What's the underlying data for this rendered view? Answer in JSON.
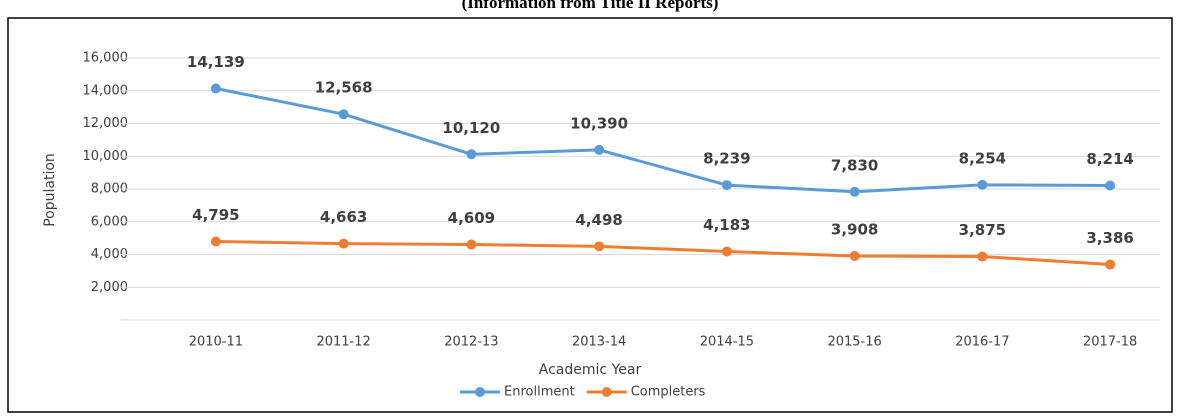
{
  "chart_data": {
    "type": "line",
    "title": "(Information from Title II Reports)",
    "x_label": "Academic Year",
    "y_label": "Population",
    "categories": [
      "2010-11",
      "2011-12",
      "2012-13",
      "2013-14",
      "2014-15",
      "2015-16",
      "2016-17",
      "2017-18"
    ],
    "series": [
      {
        "name": "Enrollment",
        "color": "#5b9bd5",
        "values": [
          14139,
          12568,
          10120,
          10390,
          8239,
          7830,
          8254,
          8214
        ],
        "value_labels": [
          "14,139",
          "12,568",
          "10,120",
          "10,390",
          "8,239",
          "7,830",
          "8,254",
          "8,214"
        ]
      },
      {
        "name": "Completers",
        "color": "#ed7d31",
        "values": [
          4795,
          4663,
          4609,
          4498,
          4183,
          3908,
          3875,
          3386
        ],
        "value_labels": [
          "4,795",
          "4,663",
          "4,609",
          "4,498",
          "4,183",
          "3,908",
          "3,875",
          "3,386"
        ]
      }
    ],
    "ylim": [
      0,
      16000
    ],
    "yticks": [
      {
        "value": 0,
        "label": "-"
      },
      {
        "value": 2000,
        "label": "2,000"
      },
      {
        "value": 4000,
        "label": "4,000"
      },
      {
        "value": 6000,
        "label": "6,000"
      },
      {
        "value": 8000,
        "label": "8,000"
      },
      {
        "value": 10000,
        "label": "10,000"
      },
      {
        "value": 12000,
        "label": "12,000"
      },
      {
        "value": 14000,
        "label": "14,000"
      },
      {
        "value": 16000,
        "label": "16,000"
      }
    ],
    "grid": true,
    "legend": "bottom"
  }
}
